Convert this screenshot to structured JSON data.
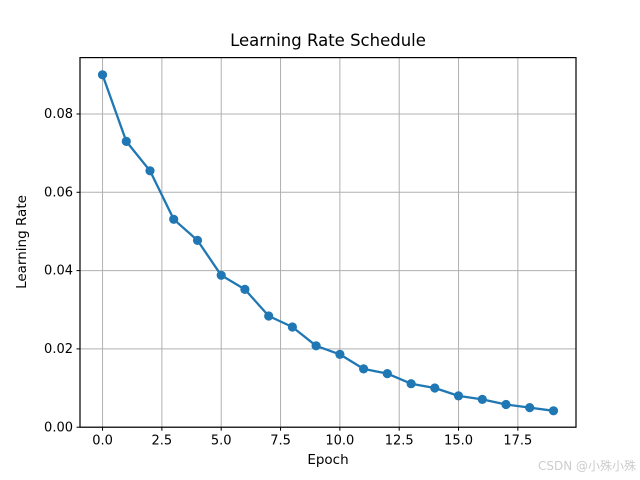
{
  "chart_data": {
    "type": "line",
    "title": "Learning Rate Schedule",
    "xlabel": "Epoch",
    "ylabel": "Learning Rate",
    "x": [
      0,
      1,
      2,
      3,
      4,
      5,
      6,
      7,
      8,
      9,
      10,
      11,
      12,
      13,
      14,
      15,
      16,
      17,
      18,
      19
    ],
    "values": [
      0.09,
      0.073,
      0.0655,
      0.0531,
      0.0477,
      0.0388,
      0.0352,
      0.0284,
      0.0256,
      0.0208,
      0.0186,
      0.0149,
      0.0137,
      0.0111,
      0.01,
      0.008,
      0.0071,
      0.0058,
      0.005,
      0.0042
    ],
    "series_name": "learning_rate",
    "xlim": [
      -0.95,
      19.95
    ],
    "ylim": [
      0,
      0.0944
    ],
    "x_ticks": {
      "values": [
        0,
        2.5,
        5,
        7.5,
        10,
        12.5,
        15,
        17.5
      ],
      "labels": [
        "0.0",
        "2.5",
        "5.0",
        "7.5",
        "10.0",
        "12.5",
        "15.0",
        "17.5"
      ]
    },
    "y_ticks": {
      "values": [
        0,
        0.02,
        0.04,
        0.06,
        0.08
      ],
      "labels": [
        "0.00",
        "0.02",
        "0.04",
        "0.06",
        "0.08"
      ]
    },
    "grid": true,
    "legend": "none",
    "marker": "circle",
    "line_color": "#1f77b4",
    "grid_color": "#b0b0b0",
    "axis_color": "#000000",
    "tick_label_color": "#000000",
    "background": "#ffffff"
  },
  "watermark": {
    "text": "CSDN @小殊小殊",
    "color": "#cccccc"
  }
}
